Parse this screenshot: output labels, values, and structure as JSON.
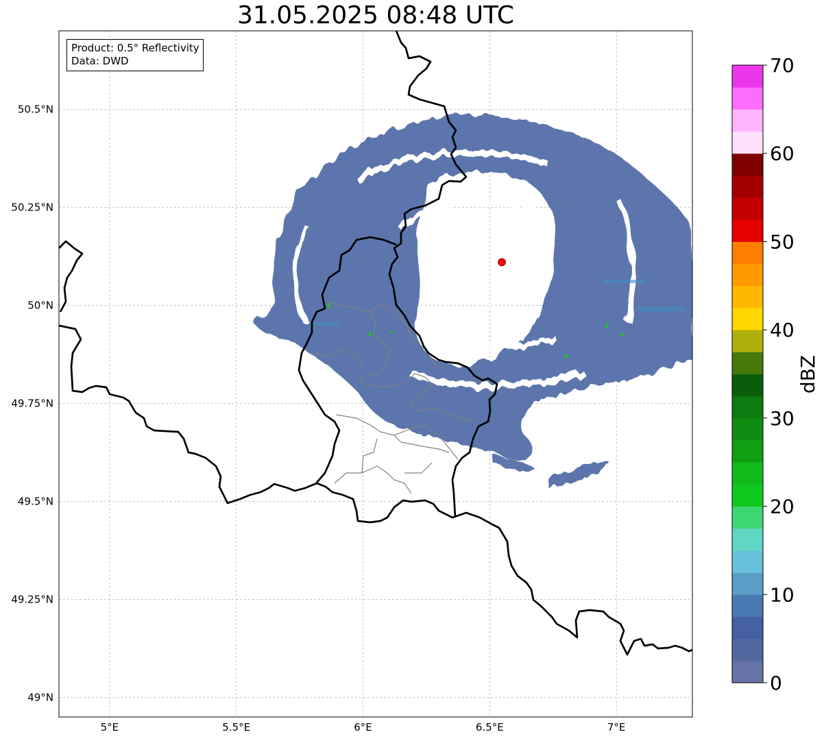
{
  "title": "31.05.2025 08:48 UTC",
  "info": {
    "product": "Product: 0.5° Reflectivity",
    "data": "Data: DWD"
  },
  "map": {
    "lon_range": [
      4.8,
      7.3
    ],
    "lat_range": [
      48.95,
      50.7
    ],
    "lon_ticks": [
      {
        "value": 5.0,
        "label": "5°E"
      },
      {
        "value": 5.5,
        "label": "5.5°E"
      },
      {
        "value": 6.0,
        "label": "6°E"
      },
      {
        "value": 6.5,
        "label": "6.5°E"
      },
      {
        "value": 7.0,
        "label": "7°E"
      }
    ],
    "lat_ticks": [
      {
        "value": 49.0,
        "label": "49°N"
      },
      {
        "value": 49.25,
        "label": "49.25°N"
      },
      {
        "value": 49.5,
        "label": "49.5°N"
      },
      {
        "value": 49.75,
        "label": "49.75°N"
      },
      {
        "value": 50.0,
        "label": "50°N"
      },
      {
        "value": 50.25,
        "label": "50.25°N"
      },
      {
        "value": 50.5,
        "label": "50.5°N"
      }
    ],
    "gridlines": true,
    "radar_site": {
      "lon": 6.548,
      "lat": 50.11,
      "color": "#ff0000"
    },
    "echo_color": "#4f6aa6"
  },
  "colorbar": {
    "label": "dBZ",
    "vmin": 0,
    "vmax": 70,
    "ticks": [
      0,
      10,
      20,
      30,
      40,
      50,
      60,
      70
    ],
    "colors": [
      "#6674a8",
      "#51689f",
      "#4460a3",
      "#4a7ab2",
      "#5a9ec8",
      "#67c1dc",
      "#60d7c4",
      "#3dd672",
      "#10c81e",
      "#11bb1a",
      "#109f13",
      "#0f8d12",
      "#0c7a0f",
      "#0a5d0a",
      "#457a0a",
      "#adb00a",
      "#ffd700",
      "#ffb700",
      "#ff9900",
      "#ff7f00",
      "#e60000",
      "#c40000",
      "#a30000",
      "#800000",
      "#ffdffb",
      "#ffb4fe",
      "#ff6dfd",
      "#ec36ec"
    ]
  }
}
